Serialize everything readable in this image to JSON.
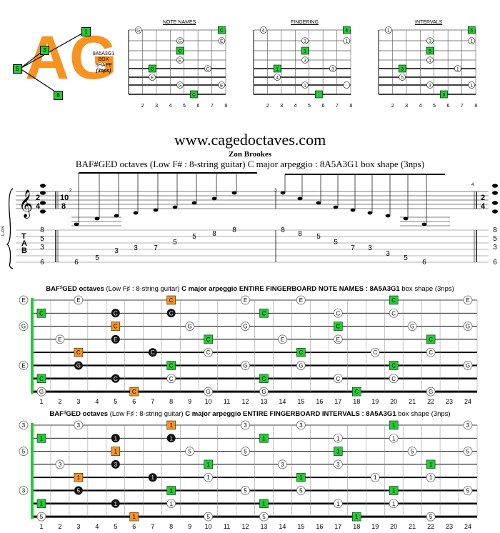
{
  "logo": {
    "letters": "AG",
    "shape_code": "8A5A3G1",
    "shape_word": "BOX",
    "shape_word2": "SHAPE",
    "shape_nps": "(3nps)",
    "markers": [
      "1",
      "3",
      "5",
      "8"
    ],
    "color": "#f7931e"
  },
  "mini_diagrams": {
    "titles": [
      "NOTE NAMES",
      "FINGERING",
      "INTERVALS"
    ],
    "frets": [
      "2",
      "3",
      "4",
      "5",
      "6",
      "7",
      "8"
    ],
    "note_names": [
      "G",
      "C",
      "G",
      "E",
      "C",
      "E",
      "G",
      "C",
      "E",
      "G",
      "E",
      "C"
    ],
    "fingering": [
      "4",
      "4",
      "1",
      "1",
      "1",
      "3",
      "1",
      "3",
      "4",
      "1"
    ],
    "intervals": [
      "1",
      "5",
      "3",
      "1",
      "5",
      "1",
      "3",
      "1",
      "5",
      "3",
      "1",
      "5"
    ]
  },
  "header": {
    "site": "www.cagedoctaves.com",
    "author": "Zon Brookes",
    "subtitle": "BAF#GED octaves (Low F# : 8-string guitar) C major arpeggio : 8A5A3G1 box shape (3nps)"
  },
  "staff": {
    "tuning_label": "L-GS",
    "time_sig_1": [
      "2",
      "4"
    ],
    "time_sig_2": [
      "10",
      "8"
    ],
    "time_sig_3": [
      "2",
      "4"
    ],
    "measure_numbers": [
      "2",
      "3",
      "4"
    ],
    "tab_letters": [
      "T",
      "A",
      "B"
    ],
    "chord_left": [
      "8",
      "5",
      "3",
      "6"
    ],
    "run_up": [
      "6",
      "5",
      "3",
      "3",
      "7",
      "5",
      "5",
      "8",
      "8"
    ],
    "run_down": [
      "8",
      "8",
      "5",
      "5",
      "7",
      "3",
      "3",
      "5",
      "6"
    ],
    "chord_right": [
      "8",
      "5",
      "3",
      "6"
    ]
  },
  "fretboard_notes": {
    "title_bold": "BAF",
    "title_sharp": "♯",
    "title_bold2": "GED octaves",
    "title_paren": "(Low F♯ : 8-string guitar)",
    "title_main": "C major arpeggio  ENTIRE FINGERBOARD  NOTE NAMES : 8A5A3G1",
    "title_tail": "box shape (3nps)",
    "open": [
      "E",
      "",
      "G",
      "",
      "",
      "E",
      "",
      ""
    ]
  },
  "fretboard_intervals": {
    "title_bold": "BAF",
    "title_sharp": "♯",
    "title_bold2": "GED octaves",
    "title_paren": "(Low F♯ : 8-string guitar)",
    "title_main": "C major arpeggio  ENTIRE FINGERBOARD  INTERVALS : 8A5A3G1",
    "title_tail": "box shape (3nps)",
    "open": [
      "3",
      "",
      "5",
      "",
      "",
      "3",
      "",
      ""
    ]
  },
  "fret_numbers": [
    "1",
    "2",
    "3",
    "4",
    "5",
    "6",
    "7",
    "8",
    "9",
    "10",
    "11",
    "12",
    "13",
    "14",
    "15",
    "16",
    "17",
    "18",
    "19",
    "20",
    "21",
    "22",
    "23",
    "24"
  ],
  "colors": {
    "green": "#22cc33",
    "orange": "#f7931e",
    "black": "#111111"
  }
}
